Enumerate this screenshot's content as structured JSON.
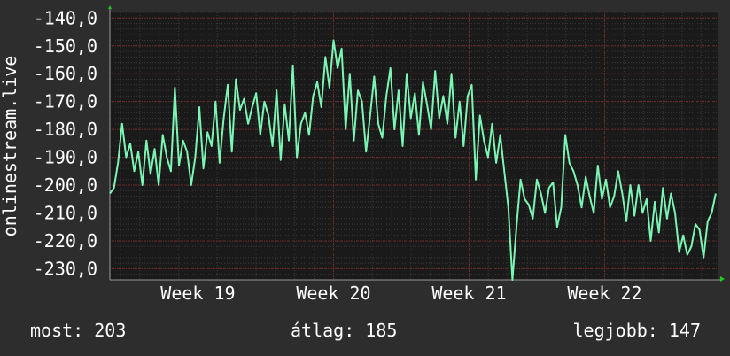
{
  "chart_data": {
    "type": "line",
    "title": "",
    "xlabel": "",
    "ylabel": "onlinestream.live",
    "ylim": [
      -234,
      -138
    ],
    "y_ticks": [
      -140,
      -150,
      -160,
      -170,
      -180,
      -190,
      -200,
      -210,
      -220,
      -230
    ],
    "y_tick_labels": [
      "-140,0",
      "-150,0",
      "-160,0",
      "-170,0",
      "-180,0",
      "-190,0",
      "-200,0",
      "-210,0",
      "-220,0",
      "-230,0"
    ],
    "x_range_weeks": [
      18.35,
      22.84
    ],
    "x_ticks": [
      {
        "label": "Week 19",
        "week": 19
      },
      {
        "label": "Week 20",
        "week": 20
      },
      {
        "label": "Week 21",
        "week": 21
      },
      {
        "label": "Week 22",
        "week": 22
      }
    ],
    "grid": true,
    "series": [
      {
        "color": "#7af5b4",
        "x": [
          18.35,
          18.38,
          18.41,
          18.44,
          18.47,
          18.5,
          18.53,
          18.56,
          18.59,
          18.62,
          18.65,
          18.68,
          18.71,
          18.74,
          18.77,
          18.8,
          18.83,
          18.86,
          18.89,
          18.92,
          18.95,
          18.98,
          19.01,
          19.04,
          19.07,
          19.1,
          19.13,
          19.16,
          19.19,
          19.22,
          19.25,
          19.28,
          19.31,
          19.34,
          19.37,
          19.4,
          19.43,
          19.46,
          19.49,
          19.52,
          19.55,
          19.58,
          19.61,
          19.64,
          19.67,
          19.7,
          19.73,
          19.76,
          19.79,
          19.82,
          19.85,
          19.88,
          19.91,
          19.94,
          19.97,
          20.0,
          20.03,
          20.06,
          20.09,
          20.12,
          20.15,
          20.18,
          20.21,
          20.24,
          20.27,
          20.3,
          20.33,
          20.36,
          20.39,
          20.42,
          20.45,
          20.48,
          20.51,
          20.54,
          20.57,
          20.6,
          20.63,
          20.66,
          20.69,
          20.72,
          20.75,
          20.78,
          20.81,
          20.84,
          20.87,
          20.9,
          20.93,
          20.96,
          20.99,
          21.02,
          21.05,
          21.08,
          21.11,
          21.14,
          21.17,
          21.2,
          21.23,
          21.26,
          21.29,
          21.32,
          21.35,
          21.38,
          21.41,
          21.44,
          21.47,
          21.5,
          21.53,
          21.56,
          21.59,
          21.62,
          21.65,
          21.68,
          21.71,
          21.74,
          21.77,
          21.8,
          21.83,
          21.86,
          21.89,
          21.92,
          21.95,
          21.98,
          22.01,
          22.04,
          22.07,
          22.1,
          22.13,
          22.16,
          22.19,
          22.22,
          22.25,
          22.28,
          22.31,
          22.34,
          22.37,
          22.4,
          22.43,
          22.46,
          22.49,
          22.52,
          22.55,
          22.58,
          22.61,
          22.64,
          22.67,
          22.7,
          22.73,
          22.76,
          22.79,
          22.82
        ],
        "values": [
          -203,
          -201,
          -192,
          -178,
          -190,
          -185,
          -195,
          -188,
          -200,
          -184,
          -196,
          -187,
          -200,
          -182,
          -190,
          -195,
          -165,
          -193,
          -184,
          -188,
          -200,
          -190,
          -172,
          -194,
          -181,
          -186,
          -170,
          -192,
          -176,
          -164,
          -188,
          -162,
          -173,
          -169,
          -178,
          -172,
          -167,
          -182,
          -170,
          -175,
          -186,
          -166,
          -191,
          -171,
          -184,
          -157,
          -190,
          -178,
          -174,
          -182,
          -168,
          -163,
          -172,
          -154,
          -165,
          -148,
          -158,
          -151,
          -180,
          -160,
          -184,
          -166,
          -170,
          -188,
          -175,
          -161,
          -178,
          -183,
          -168,
          -158,
          -180,
          -166,
          -186,
          -160,
          -176,
          -167,
          -182,
          -163,
          -171,
          -180,
          -159,
          -176,
          -168,
          -178,
          -160,
          -183,
          -170,
          -186,
          -168,
          -164,
          -198,
          -175,
          -184,
          -190,
          -178,
          -192,
          -182,
          -195,
          -208,
          -234,
          -215,
          -198,
          -205,
          -207,
          -212,
          -198,
          -203,
          -210,
          -201,
          -199,
          -215,
          -208,
          -182,
          -192,
          -195,
          -200,
          -208,
          -197,
          -204,
          -210,
          -193,
          -205,
          -198,
          -208,
          -204,
          -195,
          -203,
          -213,
          -200,
          -211,
          -200,
          -210,
          -205,
          -220,
          -206,
          -217,
          -201,
          -212,
          -203,
          -210,
          -224,
          -218,
          -225,
          -222,
          -214,
          -216,
          -226,
          -213,
          -210,
          -203
        ],
        "last_value": -203
      }
    ]
  },
  "stats": {
    "now": "most: 203",
    "avg": "átlag: 185",
    "best": "legjobb: 147"
  },
  "colors": {
    "background": "#2d2d2d",
    "plot_background": "#1a1a1a",
    "line": "#7af5b4",
    "grid_major": "#7a2a2a",
    "grid_minor": "#3a3a3a",
    "axis": "#9a9a9a",
    "arrow": "#1fc81f",
    "text": "#ffffff"
  }
}
